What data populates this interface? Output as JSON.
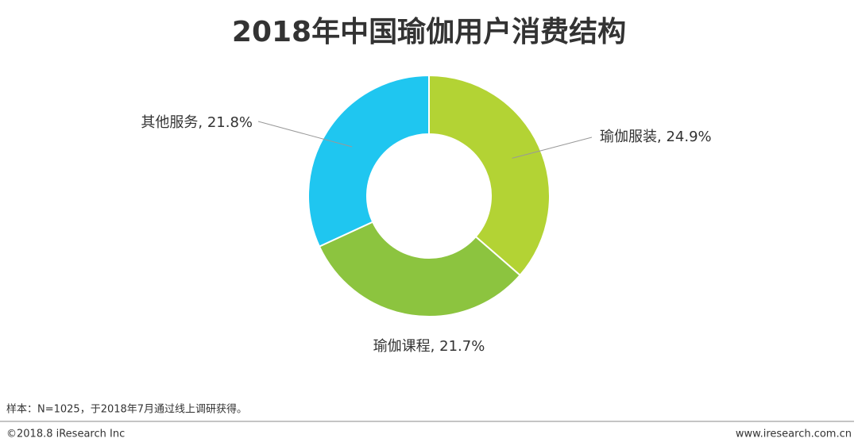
{
  "chart_data": {
    "type": "pie",
    "title": "2018年中国瑜伽用户消费结构",
    "values": [
      24.9,
      21.7,
      21.8
    ],
    "value_labels": [
      "瑜伽服装, 24.9%",
      "瑜伽课程, 21.7%",
      "其他服务, 21.8%"
    ],
    "colors": [
      "#b3d334",
      "#8cc43f",
      "#1fc6f0"
    ],
    "donut": true
  },
  "footer": {
    "note": "样本：N=1025，于2018年7月通过线上调研获得。",
    "copyright": "©2018.8 iResearch Inc",
    "website": "www.iresearch.com.cn"
  }
}
